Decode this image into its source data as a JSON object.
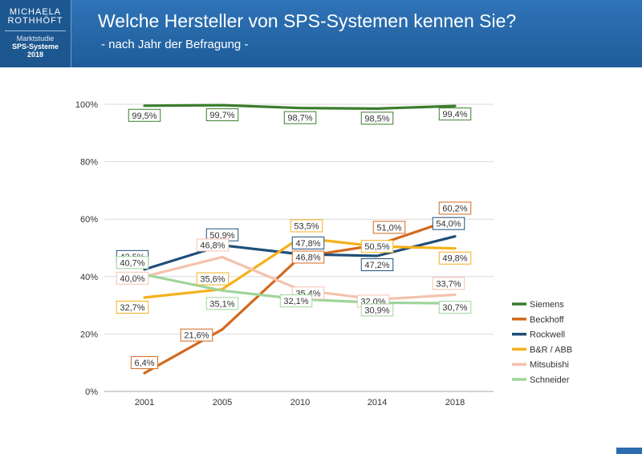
{
  "header": {
    "logo_line1": "MICHAELA",
    "logo_line2": "ROTHHÖFT",
    "logo_study": "Marktstudie",
    "logo_topic": "SPS-Systeme",
    "logo_year": "2018",
    "title": "Welche Hersteller von SPS-Systemen kennen Sie?",
    "subtitle": "- nach Jahr der Befragung -"
  },
  "chart_data": {
    "type": "line",
    "categories": [
      "2001",
      "2005",
      "2010",
      "2014",
      "2018"
    ],
    "ylim": [
      0,
      100
    ],
    "yticks": [
      0,
      20,
      40,
      60,
      80,
      100
    ],
    "ytick_labels": [
      "0%",
      "20%",
      "40%",
      "60%",
      "80%",
      "100%"
    ],
    "grid": true,
    "legend": "right",
    "series": [
      {
        "name": "Siemens",
        "color": "#3a7d2c",
        "values": [
          99.5,
          99.7,
          98.7,
          98.5,
          99.4
        ],
        "labels": [
          "99,5%",
          "99,7%",
          "98,7%",
          "98,5%",
          "99,4%"
        ]
      },
      {
        "name": "Beckhoff",
        "color": "#d2691e",
        "values": [
          6.4,
          21.6,
          46.8,
          51.0,
          60.2
        ],
        "labels": [
          "6,4%",
          "21,6%",
          "46,8%",
          "51,0%",
          "60,2%"
        ]
      },
      {
        "name": "Rockwell",
        "color": "#1f4e79",
        "values": [
          42.5,
          50.9,
          47.8,
          47.2,
          54.0
        ],
        "labels": [
          "42,5%",
          "50,9%",
          "47,8%",
          "47,2%",
          "54,0%"
        ]
      },
      {
        "name": "B&R / ABB",
        "color": "#f5b01a",
        "values": [
          32.7,
          35.6,
          53.5,
          50.5,
          49.8
        ],
        "labels": [
          "32,7%",
          "35,6%",
          "53,5%",
          "50,5%",
          "49,8%"
        ]
      },
      {
        "name": "Mitsubishi",
        "color": "#f4c2ad",
        "values": [
          40.0,
          46.8,
          35.4,
          32.0,
          33.7
        ],
        "labels": [
          "40,0%",
          "46,8%",
          "35,4%",
          "32,0%",
          "33,7%"
        ]
      },
      {
        "name": "Schneider",
        "color": "#9fd49a",
        "values": [
          40.7,
          35.1,
          32.1,
          30.9,
          30.7
        ],
        "labels": [
          "40,7%",
          "35,1%",
          "32,1%",
          "30,9%",
          "30,7%"
        ]
      }
    ]
  }
}
